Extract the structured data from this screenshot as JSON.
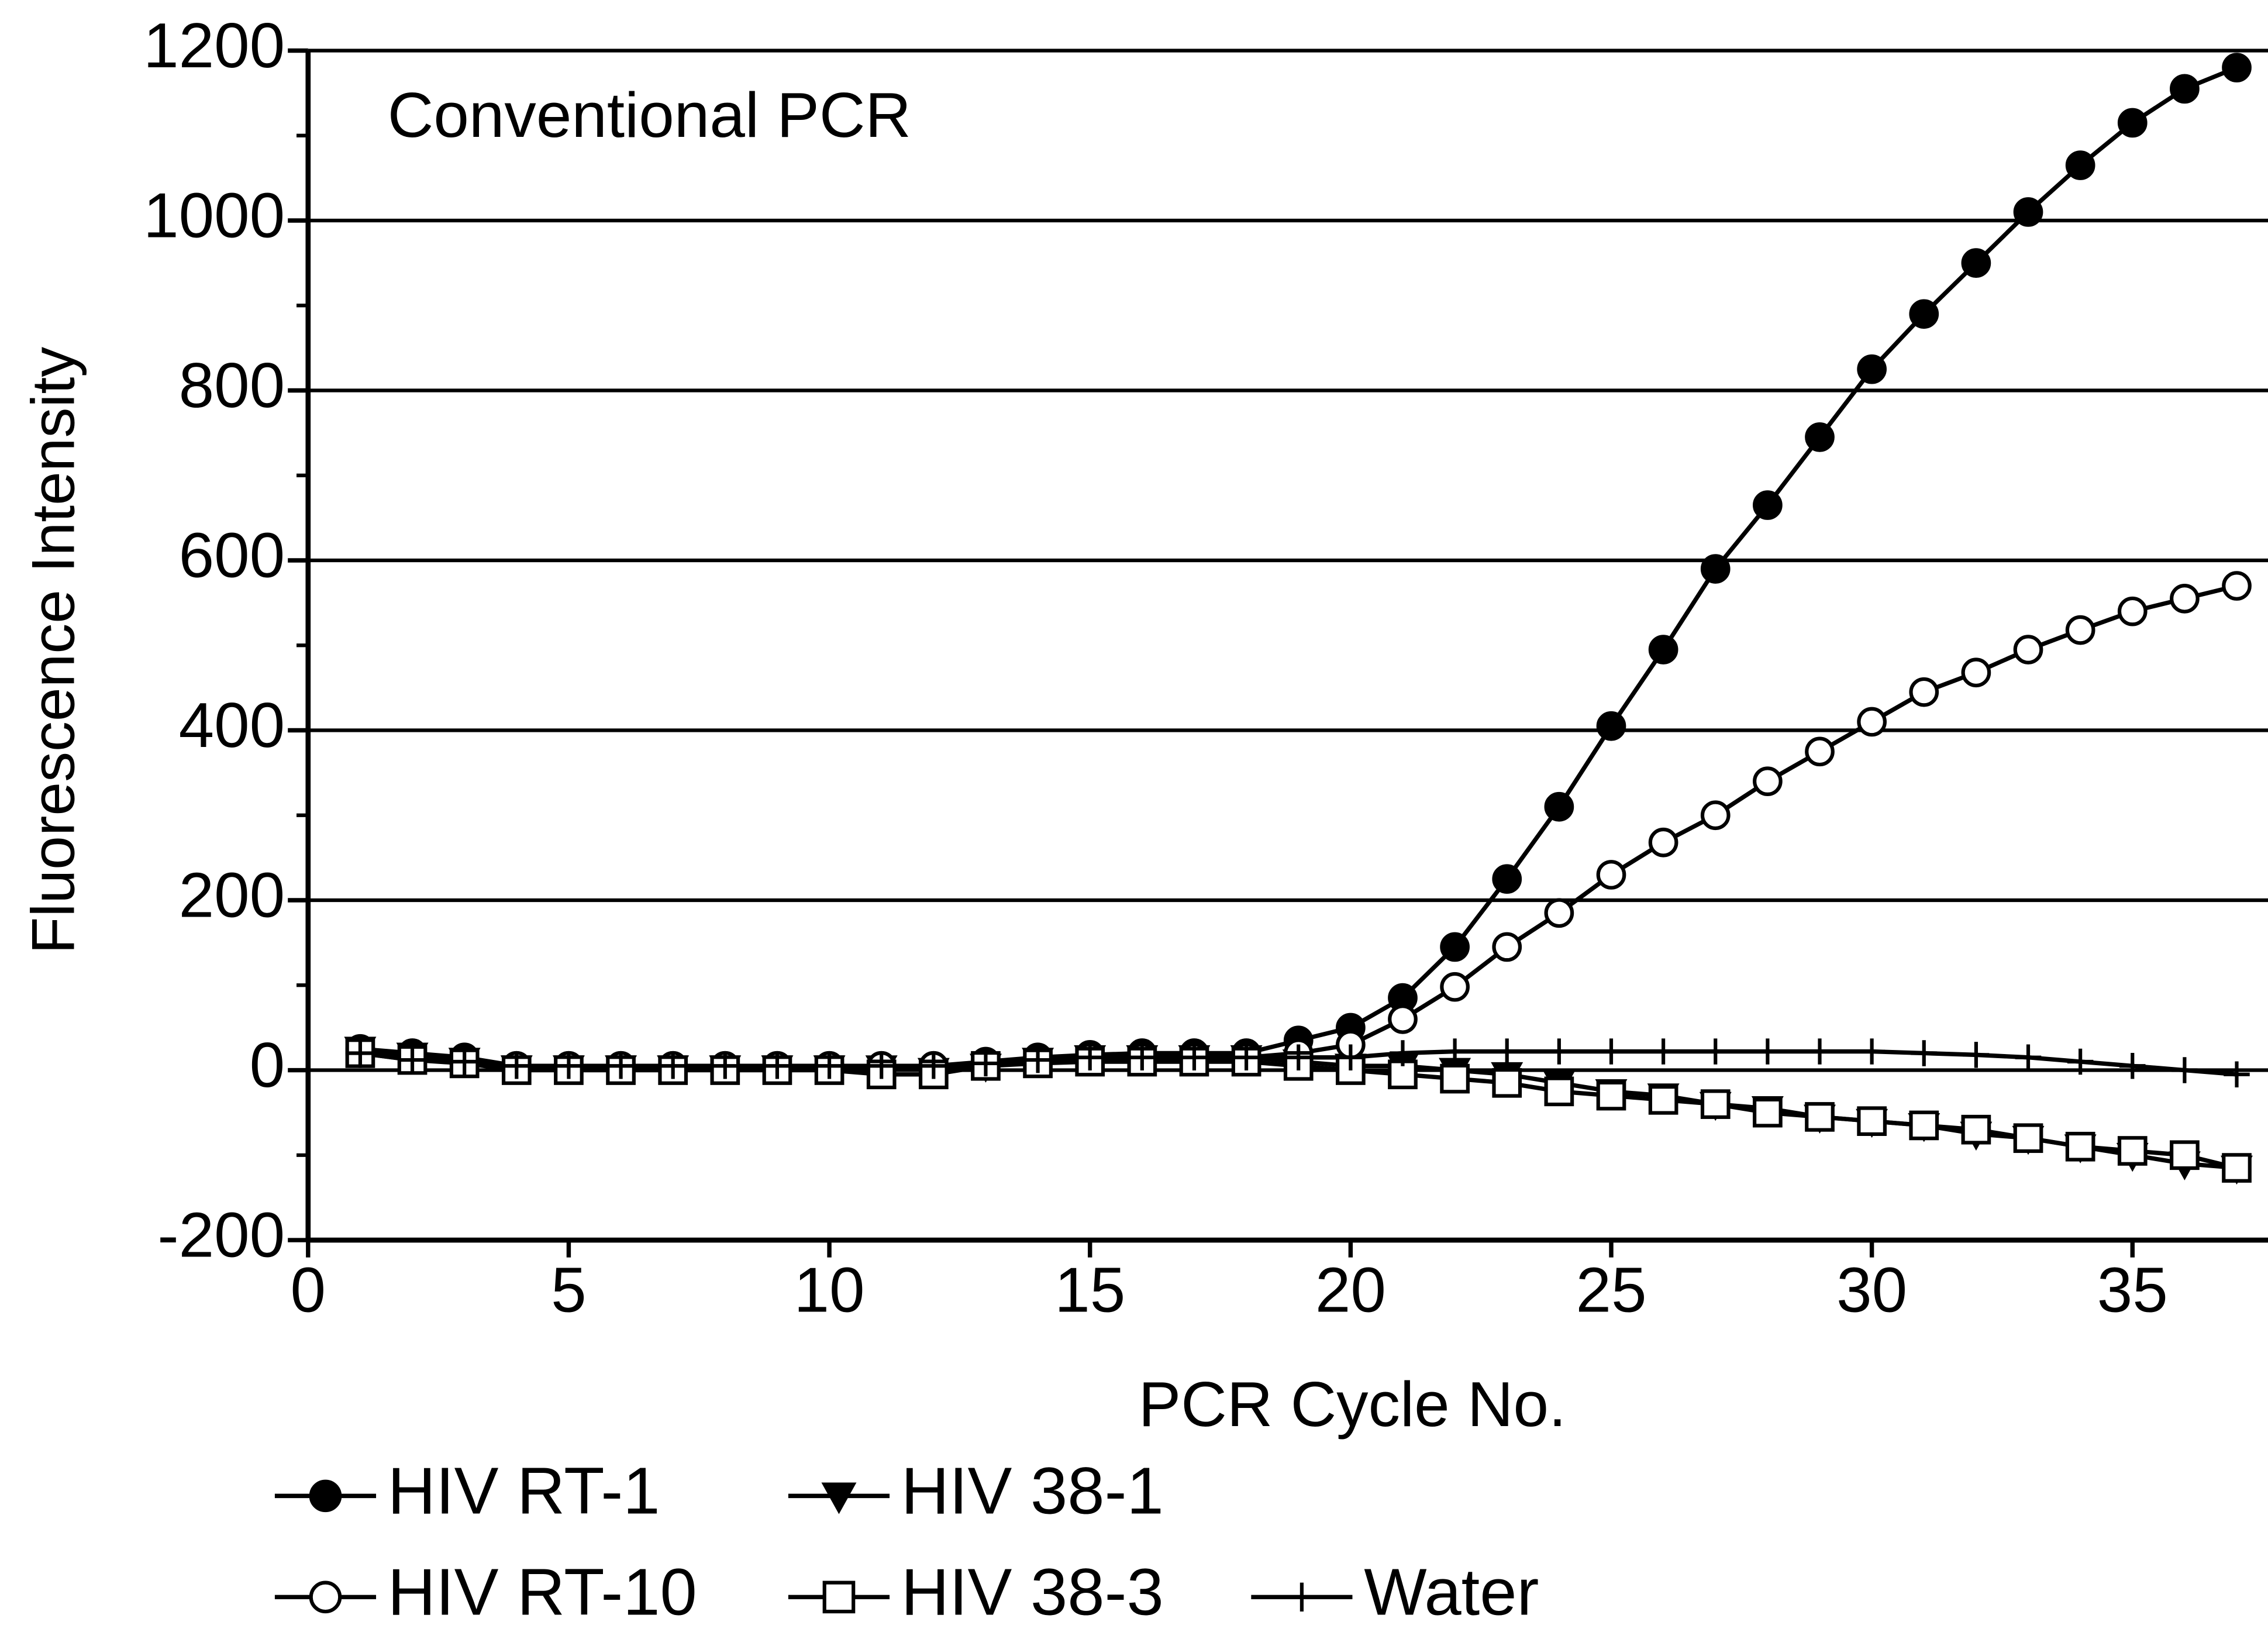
{
  "chart_data": {
    "type": "line",
    "annotation": "Conventional PCR",
    "xlabel": "PCR Cycle No.",
    "ylabel": "Fluorescence Intensity",
    "xlim": [
      0,
      37.6
    ],
    "ylim": [
      -200,
      1200
    ],
    "xticks": [
      0,
      5,
      10,
      15,
      20,
      25,
      30,
      35
    ],
    "yticks": [
      -200,
      0,
      200,
      400,
      600,
      800,
      1000,
      1200
    ],
    "grid": true,
    "legend": "bottom",
    "x": [
      1,
      2,
      3,
      4,
      5,
      6,
      7,
      8,
      9,
      10,
      11,
      12,
      13,
      14,
      15,
      16,
      17,
      18,
      19,
      20,
      21,
      22,
      23,
      24,
      25,
      26,
      27,
      28,
      29,
      30,
      31,
      32,
      33,
      34,
      35,
      36,
      37
    ],
    "series": [
      {
        "name": "HIV RT-1",
        "color": "#000000",
        "marker": "circle-filled",
        "values": [
          25,
          20,
          15,
          5,
          5,
          5,
          5,
          5,
          5,
          5,
          5,
          5,
          10,
          15,
          18,
          20,
          20,
          20,
          35,
          50,
          85,
          145,
          225,
          310,
          405,
          495,
          590,
          665,
          745,
          825,
          890,
          950,
          1010,
          1065,
          1115,
          1155,
          1180
        ]
      },
      {
        "name": "HIV 38-1",
        "color": "#000000",
        "marker": "triangle-down",
        "values": [
          25,
          18,
          12,
          3,
          3,
          3,
          3,
          3,
          3,
          3,
          3,
          0,
          5,
          12,
          15,
          15,
          15,
          15,
          10,
          5,
          5,
          0,
          -5,
          -15,
          -25,
          -30,
          -40,
          -45,
          -55,
          -60,
          -65,
          -75,
          -80,
          -90,
          -100,
          -110,
          -115
        ]
      },
      {
        "name": "HIV RT-10",
        "color": "#000000",
        "marker": "circle-open",
        "values": [
          20,
          15,
          10,
          5,
          5,
          5,
          5,
          5,
          5,
          5,
          5,
          5,
          8,
          12,
          15,
          15,
          15,
          15,
          20,
          30,
          60,
          98,
          145,
          185,
          230,
          268,
          300,
          340,
          375,
          410,
          445,
          468,
          495,
          518,
          540,
          555,
          570
        ]
      },
      {
        "name": "HIV 38-3",
        "color": "#000000",
        "marker": "square-open",
        "values": [
          20,
          12,
          8,
          0,
          0,
          0,
          0,
          0,
          0,
          0,
          -5,
          -5,
          5,
          8,
          10,
          10,
          10,
          10,
          5,
          0,
          -5,
          -10,
          -15,
          -25,
          -30,
          -35,
          -40,
          -50,
          -55,
          -60,
          -65,
          -70,
          -80,
          -90,
          -95,
          -100,
          -115
        ]
      },
      {
        "name": "Water",
        "color": "#000000",
        "marker": "plus",
        "values": [
          20,
          12,
          10,
          5,
          5,
          5,
          5,
          5,
          5,
          5,
          5,
          5,
          8,
          12,
          15,
          15,
          15,
          15,
          15,
          15,
          20,
          22,
          22,
          22,
          22,
          22,
          22,
          22,
          22,
          22,
          20,
          18,
          15,
          10,
          5,
          0,
          -5
        ]
      }
    ]
  }
}
